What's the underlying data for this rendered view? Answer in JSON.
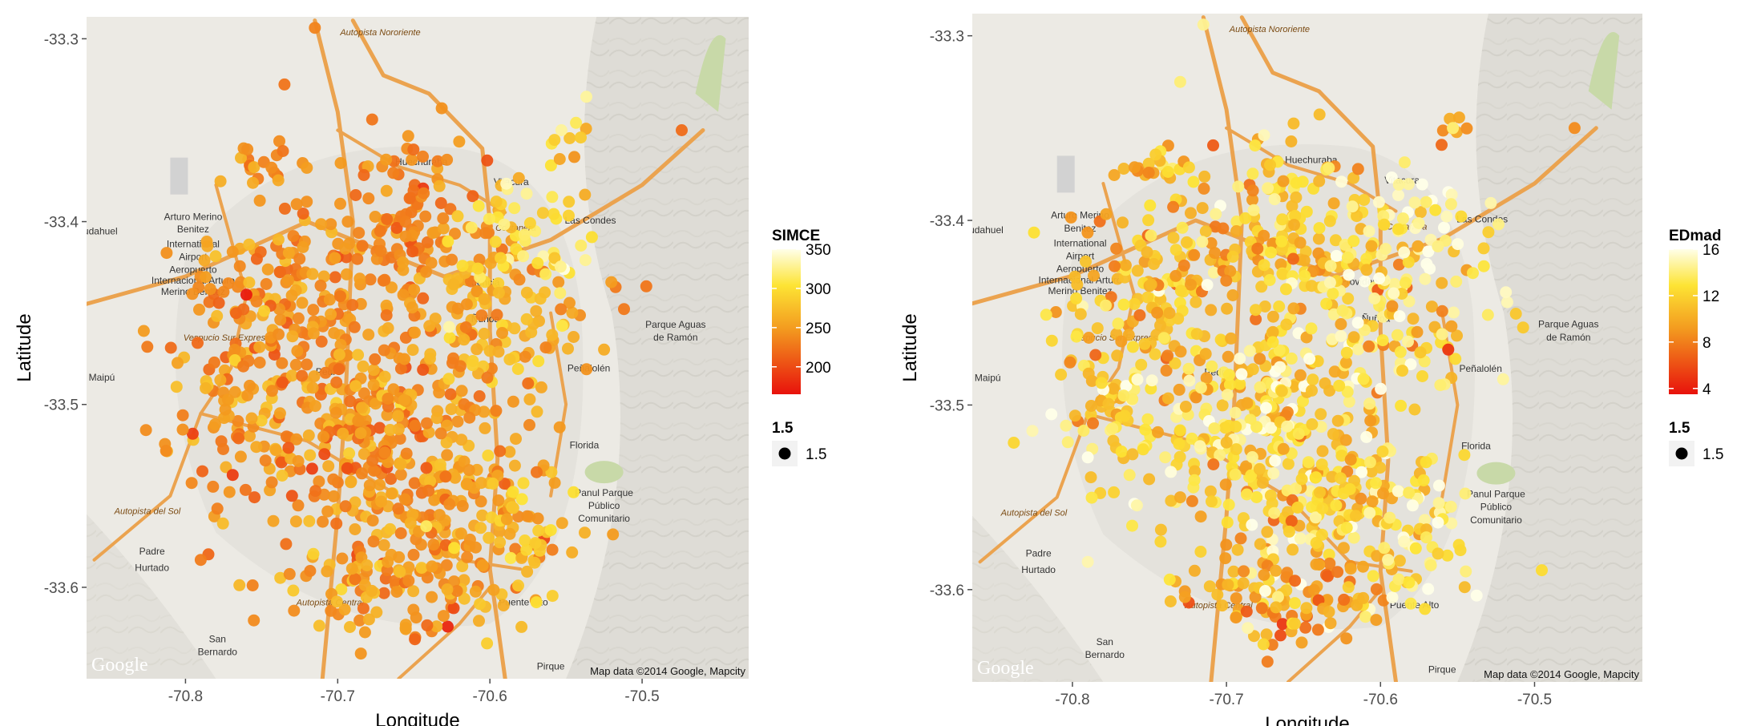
{
  "chart_data": [
    {
      "type": "scatter",
      "title": "",
      "xlabel": "Longitude",
      "ylabel": "Latitude",
      "xlim": [
        -70.865,
        -70.43
      ],
      "ylim": [
        -33.65,
        -33.288
      ],
      "x_ticks": [
        {
          "value": -70.8,
          "label": "-70.8"
        },
        {
          "value": -70.7,
          "label": "-70.7"
        },
        {
          "value": -70.6,
          "label": "-70.6"
        },
        {
          "value": -70.5,
          "label": "-70.5"
        }
      ],
      "y_ticks": [
        {
          "value": -33.3,
          "label": "-33.3"
        },
        {
          "value": -33.4,
          "label": "-33.4"
        },
        {
          "value": -33.5,
          "label": "-33.5"
        },
        {
          "value": -33.6,
          "label": "-33.6"
        }
      ],
      "color_variable": "SIMCE",
      "color_range": [
        165,
        350
      ],
      "colorbar_ticks": [
        {
          "value": 350,
          "label": "350"
        },
        {
          "value": 300,
          "label": "300"
        },
        {
          "value": 250,
          "label": "250"
        },
        {
          "value": 200,
          "label": "200"
        }
      ],
      "size_legend": {
        "title": "1.5",
        "label": "1.5"
      },
      "grid": false,
      "legend_position": "right",
      "colors": {
        "low": "#e8120c",
        "mid": "#f39a1f",
        "high": "#ffffe8"
      },
      "seed": 20141,
      "clusters": [
        {
          "x": -70.745,
          "y": -33.37,
          "sx": 0.014,
          "sy": 0.008,
          "n": 20,
          "v": 245,
          "vs": 15
        },
        {
          "x": -70.655,
          "y": -33.4,
          "sx": 0.028,
          "sy": 0.022,
          "n": 110,
          "v": 238,
          "vs": 16
        },
        {
          "x": -70.735,
          "y": -33.44,
          "sx": 0.035,
          "sy": 0.028,
          "n": 170,
          "v": 242,
          "vs": 18
        },
        {
          "x": -70.775,
          "y": -33.51,
          "sx": 0.022,
          "sy": 0.025,
          "n": 70,
          "v": 248,
          "vs": 20
        },
        {
          "x": -70.68,
          "y": -33.51,
          "sx": 0.035,
          "sy": 0.032,
          "n": 230,
          "v": 245,
          "vs": 20
        },
        {
          "x": -70.6,
          "y": -33.45,
          "sx": 0.035,
          "sy": 0.028,
          "n": 140,
          "v": 260,
          "vs": 25
        },
        {
          "x": -70.58,
          "y": -33.41,
          "sx": 0.025,
          "sy": 0.02,
          "n": 55,
          "v": 300,
          "vs": 22
        },
        {
          "x": -70.63,
          "y": -33.55,
          "sx": 0.035,
          "sy": 0.025,
          "n": 170,
          "v": 248,
          "vs": 20
        },
        {
          "x": -70.66,
          "y": -33.6,
          "sx": 0.035,
          "sy": 0.015,
          "n": 110,
          "v": 255,
          "vs": 22
        },
        {
          "x": -70.58,
          "y": -33.58,
          "sx": 0.018,
          "sy": 0.018,
          "n": 40,
          "v": 272,
          "vs": 25
        },
        {
          "x": -70.55,
          "y": -33.35,
          "sx": 0.008,
          "sy": 0.008,
          "n": 7,
          "v": 270,
          "vs": 40
        }
      ],
      "points": [
        {
          "x": -70.76,
          "y": -33.44,
          "v": 170
        },
        {
          "x": -70.73,
          "y": -33.55,
          "v": 205
        },
        {
          "x": -70.826,
          "y": -33.514,
          "v": 240
        },
        {
          "x": -70.474,
          "y": -33.35,
          "v": 220
        },
        {
          "x": -70.735,
          "y": -33.325,
          "v": 225
        },
        {
          "x": -70.715,
          "y": -33.294,
          "v": 235
        },
        {
          "x": -70.545,
          "y": -33.548,
          "v": 300
        },
        {
          "x": -70.525,
          "y": -33.47,
          "v": 262
        },
        {
          "x": -70.553,
          "y": -33.35,
          "v": 330
        },
        {
          "x": -70.79,
          "y": -33.585,
          "v": 230
        }
      ]
    },
    {
      "type": "scatter",
      "title": "",
      "xlabel": "Longitude",
      "ylabel": "Latitude",
      "xlim": [
        -70.865,
        -70.43
      ],
      "ylim": [
        -33.65,
        -33.288
      ],
      "x_ticks": [
        {
          "value": -70.8,
          "label": "-70.8"
        },
        {
          "value": -70.7,
          "label": "-70.7"
        },
        {
          "value": -70.6,
          "label": "-70.6"
        },
        {
          "value": -70.5,
          "label": "-70.5"
        }
      ],
      "y_ticks": [
        {
          "value": -33.3,
          "label": "-33.3"
        },
        {
          "value": -33.4,
          "label": "-33.4"
        },
        {
          "value": -33.5,
          "label": "-33.5"
        },
        {
          "value": -33.6,
          "label": "-33.6"
        }
      ],
      "color_variable": "EDmad",
      "color_range": [
        3.5,
        16
      ],
      "colorbar_ticks": [
        {
          "value": 16,
          "label": "16"
        },
        {
          "value": 12,
          "label": "12"
        },
        {
          "value": 8,
          "label": "8"
        },
        {
          "value": 4,
          "label": "4"
        }
      ],
      "size_legend": {
        "title": "1.5",
        "label": "1.5"
      },
      "grid": false,
      "legend_position": "right",
      "colors": {
        "low": "#e8120c",
        "mid": "#f39a1f",
        "high": "#ffffe8"
      },
      "seed": 20142,
      "clusters": [
        {
          "x": -70.745,
          "y": -33.37,
          "sx": 0.014,
          "sy": 0.008,
          "n": 20,
          "v": 11,
          "vs": 1.8
        },
        {
          "x": -70.655,
          "y": -33.4,
          "sx": 0.028,
          "sy": 0.022,
          "n": 110,
          "v": 11.5,
          "vs": 2
        },
        {
          "x": -70.735,
          "y": -33.44,
          "sx": 0.035,
          "sy": 0.028,
          "n": 170,
          "v": 11,
          "vs": 2
        },
        {
          "x": -70.775,
          "y": -33.51,
          "sx": 0.022,
          "sy": 0.025,
          "n": 70,
          "v": 12.5,
          "vs": 2
        },
        {
          "x": -70.68,
          "y": -33.51,
          "sx": 0.035,
          "sy": 0.032,
          "n": 230,
          "v": 12.5,
          "vs": 2.2
        },
        {
          "x": -70.6,
          "y": -33.45,
          "sx": 0.035,
          "sy": 0.028,
          "n": 140,
          "v": 12.8,
          "vs": 2.3
        },
        {
          "x": -70.58,
          "y": -33.41,
          "sx": 0.025,
          "sy": 0.02,
          "n": 55,
          "v": 14.5,
          "vs": 1.5
        },
        {
          "x": -70.63,
          "y": -33.55,
          "sx": 0.035,
          "sy": 0.025,
          "n": 170,
          "v": 12,
          "vs": 2.2
        },
        {
          "x": -70.66,
          "y": -33.6,
          "sx": 0.035,
          "sy": 0.015,
          "n": 110,
          "v": 10,
          "vs": 2
        },
        {
          "x": -70.58,
          "y": -33.58,
          "sx": 0.018,
          "sy": 0.018,
          "n": 40,
          "v": 13.8,
          "vs": 1.5
        },
        {
          "x": -70.55,
          "y": -33.35,
          "sx": 0.008,
          "sy": 0.008,
          "n": 7,
          "v": 10.5,
          "vs": 2
        }
      ],
      "points": [
        {
          "x": -70.556,
          "y": -33.47,
          "v": 5
        },
        {
          "x": -70.745,
          "y": -33.45,
          "v": 9
        },
        {
          "x": -70.826,
          "y": -33.514,
          "v": 15
        },
        {
          "x": -70.474,
          "y": -33.35,
          "v": 8.5
        },
        {
          "x": -70.73,
          "y": -33.325,
          "v": 14
        },
        {
          "x": -70.715,
          "y": -33.294,
          "v": 14.5
        },
        {
          "x": -70.73,
          "y": -33.55,
          "v": 10
        },
        {
          "x": -70.545,
          "y": -33.548,
          "v": 14
        },
        {
          "x": -70.553,
          "y": -33.35,
          "v": 14
        },
        {
          "x": -70.79,
          "y": -33.585,
          "v": 15
        }
      ]
    }
  ],
  "basemap": {
    "attribution": "Map data ©2014 Google, Mapcity",
    "provider_mark": "Google",
    "place_labels": [
      {
        "text": "Pudahuel",
        "x": -70.858,
        "y": -33.407
      },
      {
        "text": "Arturo Merino",
        "x": -70.795,
        "y": -33.399
      },
      {
        "text": "Benitez",
        "x": -70.795,
        "y": -33.406
      },
      {
        "text": "International",
        "x": -70.795,
        "y": -33.414
      },
      {
        "text": "Airport",
        "x": -70.795,
        "y": -33.421
      },
      {
        "text": "Aeropuerto",
        "x": -70.795,
        "y": -33.428
      },
      {
        "text": "Internacional Arturo",
        "x": -70.795,
        "y": -33.434
      },
      {
        "text": "Merino Benitez",
        "x": -70.795,
        "y": -33.44
      },
      {
        "text": "Huechuraba",
        "x": -70.645,
        "y": -33.369
      },
      {
        "text": "Vitacura",
        "x": -70.586,
        "y": -33.38
      },
      {
        "text": "Las Condes",
        "x": -70.534,
        "y": -33.401
      },
      {
        "text": "Providencia",
        "x": -70.61,
        "y": -33.435
      },
      {
        "text": "Ñuñoa",
        "x": -70.603,
        "y": -33.455
      },
      {
        "text": "Peñalolén",
        "x": -70.535,
        "y": -33.482
      },
      {
        "text": "Parque Aguas",
        "x": -70.478,
        "y": -33.458
      },
      {
        "text": "de Ramón",
        "x": -70.478,
        "y": -33.465
      },
      {
        "text": "Maipú",
        "x": -70.855,
        "y": -33.487
      },
      {
        "text": "Pedro",
        "x": -70.706,
        "y": -33.484
      },
      {
        "text": "Florida",
        "x": -70.538,
        "y": -33.524
      },
      {
        "text": "Panul Parque",
        "x": -70.525,
        "y": -33.55
      },
      {
        "text": "Público",
        "x": -70.525,
        "y": -33.557
      },
      {
        "text": "Comunitario",
        "x": -70.525,
        "y": -33.564
      },
      {
        "text": "Padre",
        "x": -70.822,
        "y": -33.582
      },
      {
        "text": "Hurtado",
        "x": -70.822,
        "y": -33.591
      },
      {
        "text": "San",
        "x": -70.779,
        "y": -33.63
      },
      {
        "text": "Bernardo",
        "x": -70.779,
        "y": -33.637
      },
      {
        "text": "Puente Alto",
        "x": -70.578,
        "y": -33.61
      },
      {
        "text": "Pirque",
        "x": -70.56,
        "y": -33.645
      }
    ],
    "road_labels": [
      {
        "text": "Autopista Nororiente",
        "x": -70.672,
        "y": -33.298
      },
      {
        "text": "Costanera",
        "x": -70.583,
        "y": -33.405
      },
      {
        "text": "Vespucio Sur Express",
        "x": -70.773,
        "y": -33.465
      },
      {
        "text": "Autopista del Sol",
        "x": -70.825,
        "y": -33.56
      },
      {
        "text": "Autopista Central",
        "x": -70.705,
        "y": -33.61
      }
    ]
  },
  "figure_width": 2182,
  "figure_height": 906
}
